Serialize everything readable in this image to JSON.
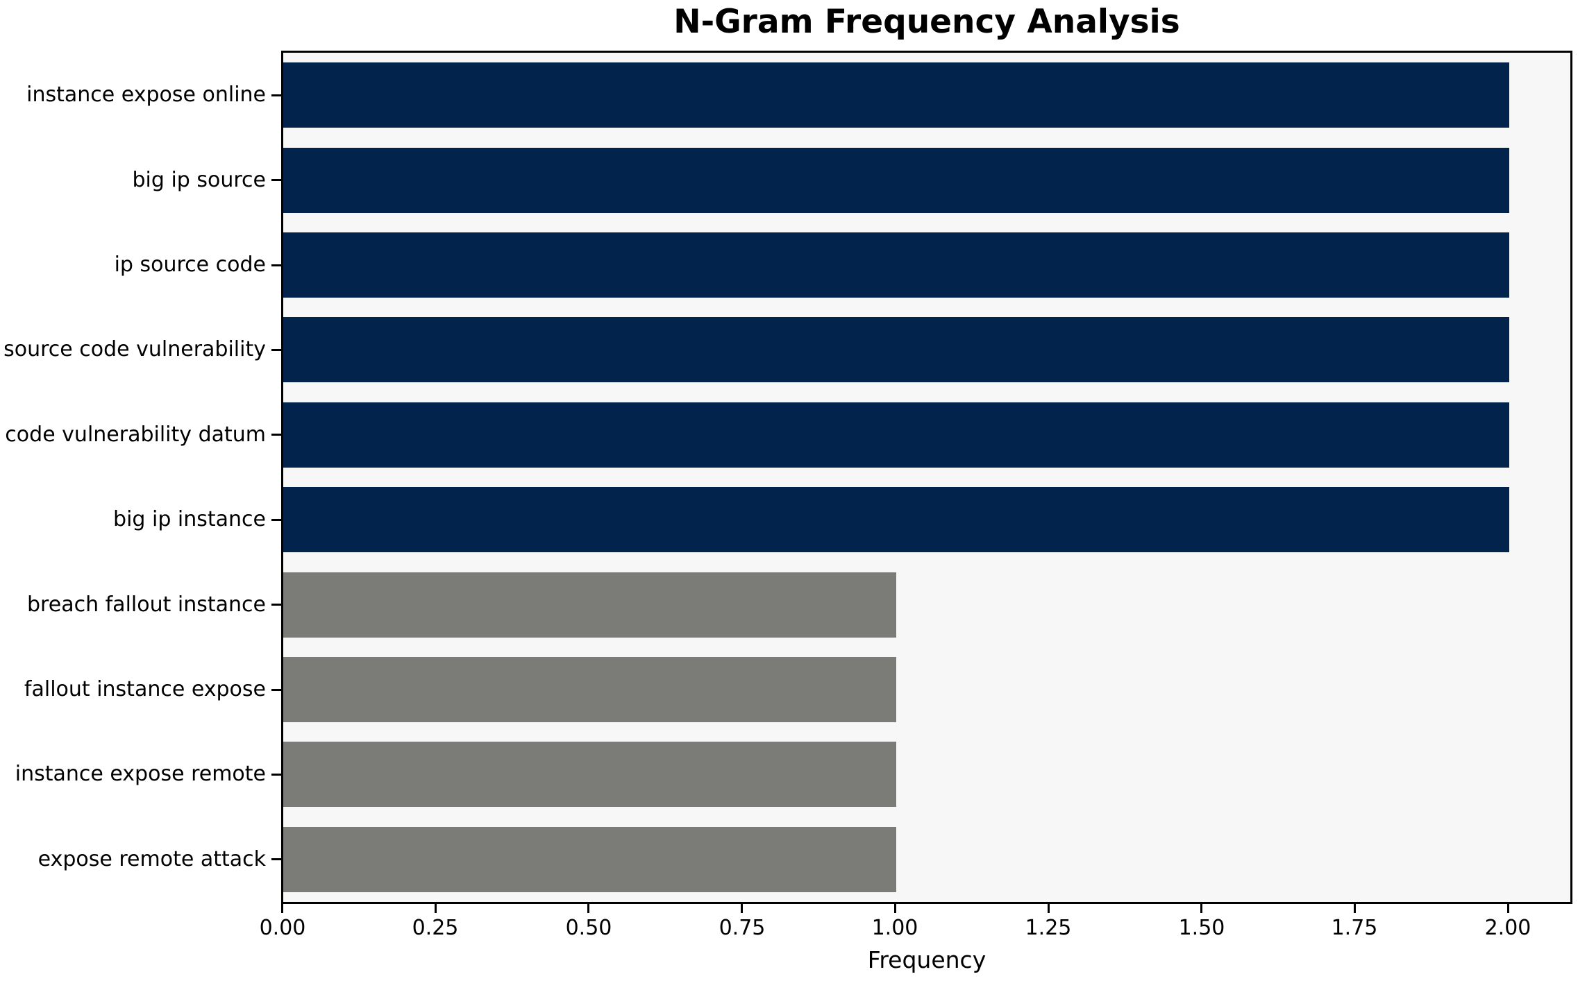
{
  "chart_data": {
    "type": "bar",
    "orientation": "horizontal",
    "title": "N-Gram Frequency Analysis",
    "xlabel": "Frequency",
    "ylabel": "",
    "categories": [
      "instance expose online",
      "big ip source",
      "ip source code",
      "source code vulnerability",
      "code vulnerability datum",
      "big ip instance",
      "breach fallout instance",
      "fallout instance expose",
      "instance expose remote",
      "expose remote attack"
    ],
    "values": [
      2,
      2,
      2,
      2,
      2,
      2,
      1,
      1,
      1,
      1
    ],
    "bar_colors": [
      "#02234c",
      "#02234c",
      "#02234c",
      "#02234c",
      "#02234c",
      "#02234c",
      "#7b7b78",
      "#7b7b78",
      "#7b7b78",
      "#7b7b78"
    ],
    "xlim": [
      0,
      2.1
    ],
    "xtick_values": [
      0,
      0.25,
      0.5,
      0.75,
      1.0,
      1.25,
      1.5,
      1.75,
      2.0
    ],
    "xtick_labels": [
      "0.00",
      "0.25",
      "0.50",
      "0.75",
      "1.00",
      "1.25",
      "1.50",
      "1.75",
      "2.00"
    ],
    "grid": false,
    "legend": false,
    "colors": {
      "bar_high": "#02234c",
      "bar_low": "#7b7b78",
      "plot_background": "#f7f7f7",
      "figure_background": "#ffffff",
      "axis": "#000000",
      "text": "#000000"
    }
  }
}
